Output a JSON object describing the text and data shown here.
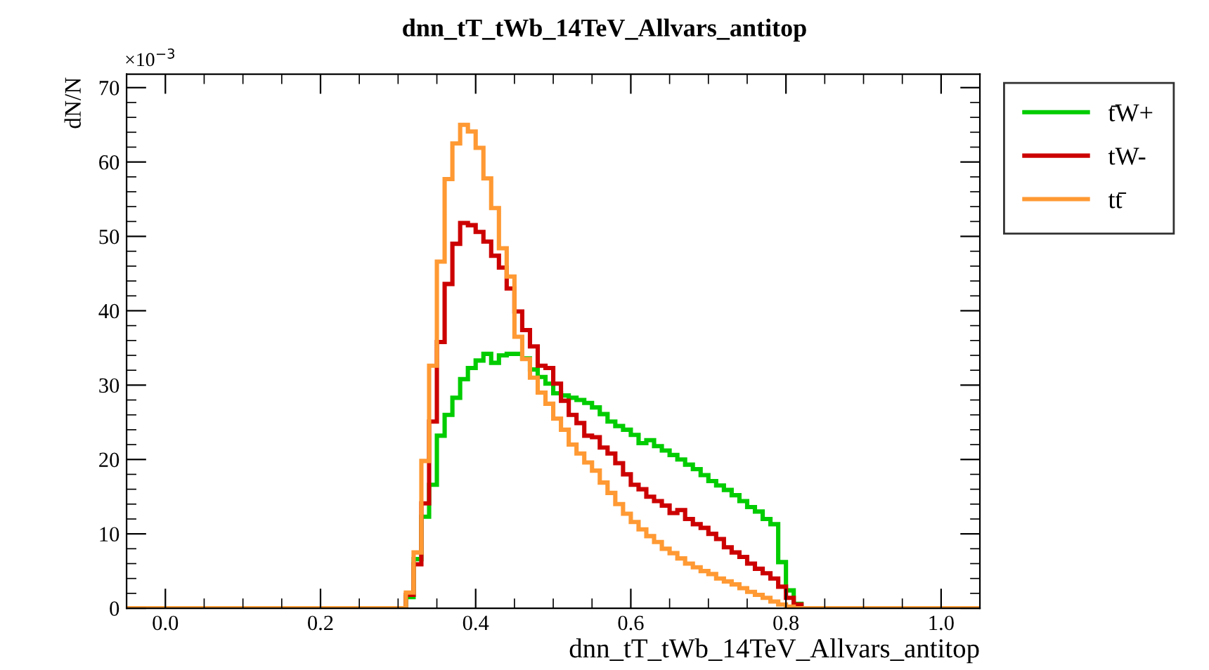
{
  "chart_data": {
    "type": "histogram",
    "title": "dnn_tT_tWb_14TeV_Allvars_antitop",
    "xlabel": "dnn_tT_tWb_14TeV_Allvars_antitop",
    "ylabel": "dN/N",
    "annotations": [
      "×10$^{−3}$"
    ],
    "bins": [
      -0.05,
      -0.04,
      -0.03,
      -0.02,
      -0.01,
      0.0,
      0.01,
      0.02,
      0.03,
      0.04,
      0.05,
      0.06,
      0.07,
      0.08,
      0.09,
      0.1,
      0.11,
      0.12,
      0.13,
      0.14,
      0.15,
      0.16,
      0.17,
      0.18,
      0.19,
      0.2,
      0.21,
      0.22,
      0.23,
      0.24,
      0.25,
      0.26,
      0.27,
      0.28,
      0.29,
      0.3,
      0.31,
      0.32,
      0.33,
      0.34,
      0.35,
      0.36,
      0.37,
      0.38,
      0.39,
      0.4,
      0.41,
      0.42,
      0.43,
      0.44,
      0.45,
      0.46,
      0.47,
      0.48,
      0.49,
      0.5,
      0.51,
      0.52,
      0.53,
      0.54,
      0.55,
      0.56,
      0.57,
      0.58,
      0.59,
      0.6,
      0.61,
      0.62,
      0.63,
      0.64,
      0.65,
      0.66,
      0.67,
      0.68,
      0.69,
      0.7,
      0.71,
      0.72,
      0.73,
      0.74,
      0.75,
      0.76,
      0.77,
      0.78,
      0.79,
      0.8,
      0.81,
      0.82,
      0.83,
      0.84,
      0.85,
      0.86,
      0.87,
      0.88,
      0.89,
      0.9,
      0.91,
      0.92,
      0.93,
      0.94,
      0.95,
      0.96,
      0.97,
      0.98,
      0.99,
      1.0,
      1.01,
      1.02,
      1.03,
      1.04,
      1.05
    ],
    "series": [
      {
        "name": "t̄W+",
        "color": "#00cc00",
        "values": [
          0,
          0,
          0,
          0,
          0,
          0,
          0,
          0,
          0,
          0,
          0,
          0,
          0,
          0,
          0,
          0,
          0,
          0,
          0,
          0,
          0,
          0,
          0,
          0,
          0,
          0,
          0,
          0,
          0,
          0,
          0,
          0,
          0,
          0,
          0,
          0,
          1.5,
          6.6,
          12.3,
          16.6,
          23.2,
          26.0,
          28.3,
          30.8,
          32.3,
          33.3,
          34.2,
          33.0,
          34.0,
          34.2,
          34.2,
          33.6,
          32.1,
          31.1,
          30.2,
          28.9,
          28.6,
          28.3,
          28.0,
          27.6,
          27.0,
          26.1,
          25.1,
          24.5,
          24.0,
          23.3,
          22.2,
          22.6,
          21.8,
          21.2,
          20.6,
          20.0,
          19.3,
          18.7,
          17.9,
          17.1,
          16.5,
          15.9,
          15.2,
          14.4,
          13.6,
          13.0,
          12.0,
          11.3,
          6.2,
          2.4,
          0.6,
          0,
          0,
          0,
          0,
          0,
          0,
          0,
          0,
          0,
          0,
          0,
          0,
          0,
          0,
          0,
          0,
          0,
          0,
          0,
          0,
          0,
          0,
          0
        ]
      },
      {
        "name": "tW-",
        "color": "#cc0000",
        "values": [
          0,
          0,
          0,
          0,
          0,
          0,
          0,
          0,
          0,
          0,
          0,
          0,
          0,
          0,
          0,
          0,
          0,
          0,
          0,
          0,
          0,
          0,
          0,
          0,
          0,
          0,
          0,
          0,
          0,
          0,
          0,
          0,
          0,
          0,
          0,
          0,
          1.8,
          5.9,
          14.1,
          25.1,
          35.8,
          43.6,
          49.0,
          51.8,
          51.5,
          50.6,
          49.3,
          47.4,
          45.8,
          43.0,
          39.9,
          37.4,
          35.2,
          32.6,
          32.3,
          30.2,
          27.9,
          26.0,
          24.9,
          23.2,
          23.0,
          21.6,
          20.8,
          19.5,
          18.0,
          16.6,
          16.0,
          15.0,
          14.4,
          13.8,
          12.8,
          13.2,
          12.0,
          11.3,
          10.8,
          10.0,
          9.3,
          8.2,
          7.5,
          6.9,
          6.0,
          5.3,
          4.7,
          4.0,
          2.9,
          1.4,
          0.5,
          0,
          0,
          0,
          0,
          0,
          0,
          0,
          0,
          0,
          0,
          0,
          0,
          0,
          0,
          0,
          0,
          0,
          0,
          0,
          0,
          0,
          0,
          0
        ]
      },
      {
        "name": "tt̄",
        "color": "#ff9933",
        "values": [
          0,
          0,
          0,
          0,
          0,
          0,
          0,
          0,
          0,
          0,
          0,
          0,
          0,
          0,
          0,
          0,
          0,
          0,
          0,
          0,
          0,
          0,
          0,
          0,
          0,
          0,
          0,
          0,
          0,
          0,
          0,
          0,
          0,
          0,
          0,
          0,
          2.1,
          7.5,
          19.8,
          32.6,
          46.6,
          57.7,
          62.5,
          65.0,
          64.1,
          61.9,
          57.8,
          53.8,
          48.4,
          44.6,
          36.5,
          33.5,
          31.0,
          29.0,
          27.5,
          25.5,
          24.0,
          22.0,
          20.8,
          19.6,
          18.5,
          16.9,
          15.5,
          14.0,
          12.7,
          11.6,
          10.6,
          9.7,
          8.9,
          8.0,
          7.4,
          6.7,
          6.0,
          5.5,
          5.0,
          4.6,
          4.0,
          3.6,
          3.2,
          2.7,
          2.2,
          1.8,
          1.4,
          0.9,
          0.5,
          0.2,
          0,
          0,
          0,
          0,
          0,
          0,
          0,
          0,
          0,
          0,
          0,
          0,
          0,
          0,
          0,
          0,
          0,
          0,
          0,
          0,
          0,
          0,
          0,
          0
        ]
      }
    ],
    "xlim": [
      -0.05,
      1.05
    ],
    "xticks": [
      {
        "value": 0,
        "label": "0.0"
      },
      {
        "value": 0.2,
        "label": "0.2"
      },
      {
        "value": 0.4,
        "label": "0.4"
      },
      {
        "value": 0.6,
        "label": "0.6"
      },
      {
        "value": 0.8,
        "label": "0.8"
      },
      {
        "value": 1.0,
        "label": "1.0"
      }
    ],
    "ylim": [
      0,
      71.8
    ],
    "yticks": [
      0,
      10,
      20,
      30,
      40,
      50,
      60,
      70
    ],
    "grid": false,
    "legend": "top right"
  }
}
